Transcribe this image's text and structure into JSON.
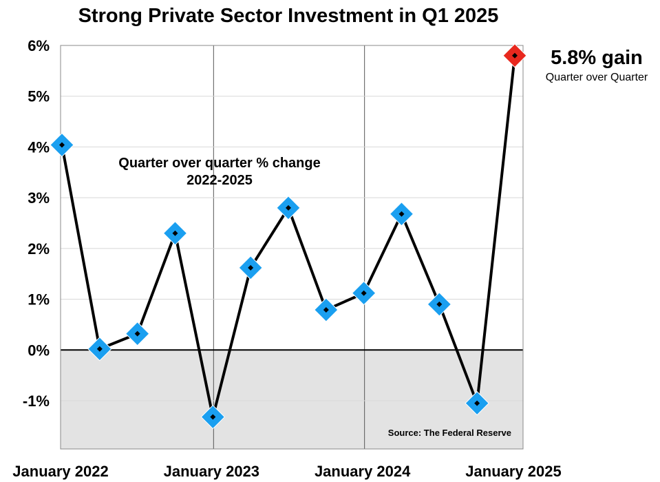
{
  "chart_data": {
    "type": "line",
    "title": "Strong Private Sector Investment in Q1 2025",
    "subtitle_lines": [
      "Quarter over quarter % change",
      "2022-2025"
    ],
    "xlabel": "",
    "ylabel": "",
    "x_tick_labels": [
      "January 2022",
      "January 2023",
      "January 2024",
      "January 2025"
    ],
    "y_tick_labels": [
      "6%",
      "5%",
      "4%",
      "3%",
      "2%",
      "1%",
      "0%",
      "-1%"
    ],
    "y_tick_values": [
      6,
      5,
      4,
      3,
      2,
      1,
      0,
      -1
    ],
    "ylim": [
      -1.95,
      6.0
    ],
    "grid": true,
    "series": [
      {
        "name": "Quarter over quarter % change",
        "values": [
          4.04,
          0.02,
          0.32,
          2.3,
          -1.32,
          1.62,
          2.8,
          0.79,
          1.12,
          2.68,
          0.9,
          -1.05,
          5.8
        ],
        "marker_color": "#1a9ff0",
        "highlight_color": "#e8281e",
        "line_color": "#000000"
      }
    ],
    "annotation": {
      "main": "5.8% gain",
      "sub": "Quarter over Quarter"
    },
    "source": "Source: The Federal Reserve",
    "negative_fill_color": "#e3e3e3"
  }
}
